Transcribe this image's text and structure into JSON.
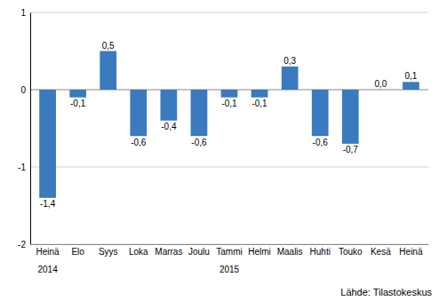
{
  "chart_data": {
    "type": "bar",
    "categories": [
      "Heinä",
      "Elo",
      "Syys",
      "Loka",
      "Marras",
      "Joulu",
      "Tammi",
      "Helmi",
      "Maalis",
      "Huhti",
      "Touko",
      "Kesä",
      "Heinä"
    ],
    "values": [
      -1.4,
      -0.1,
      0.5,
      -0.6,
      -0.4,
      -0.6,
      -0.1,
      -0.1,
      0.3,
      -0.6,
      -0.7,
      0.0,
      0.1
    ],
    "value_labels": [
      "-1,4",
      "-0,1",
      "0,5",
      "-0,6",
      "-0,4",
      "-0,6",
      "-0,1",
      "-0,1",
      "0,3",
      "-0,6",
      "-0,7",
      "0,0",
      "0,1"
    ],
    "data_labels": true,
    "color": "#3a7abf",
    "ylim": [
      -2,
      1
    ],
    "yticks": [
      -2,
      -1,
      0,
      1
    ],
    "grid": true,
    "annotations": [
      {
        "label": "2014",
        "index": 0
      },
      {
        "label": "2015",
        "index": 6
      }
    ],
    "source": "Lähde: Tilastokeskus"
  }
}
